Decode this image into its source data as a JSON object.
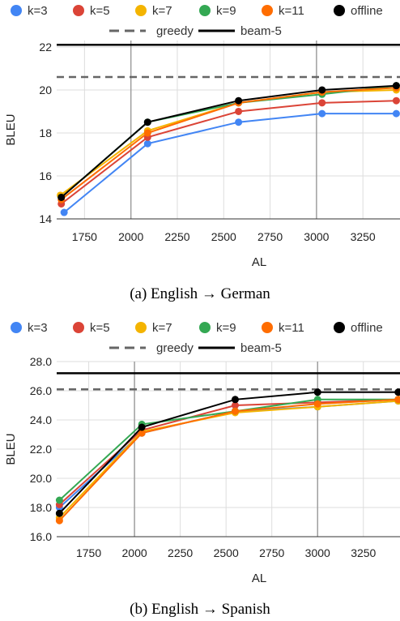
{
  "chart_data": [
    {
      "type": "line",
      "caption": "(a) English → German",
      "xlabel": "AL",
      "ylabel": "BLEU",
      "xlim": [
        1600,
        3450
      ],
      "ylim": [
        14,
        22.3
      ],
      "xticks": [
        "1750",
        "2000",
        "2250",
        "2500",
        "2750",
        "3000",
        "3250"
      ],
      "yticks": [
        "14",
        "16",
        "18",
        "20",
        "22"
      ],
      "series": [
        {
          "name": "k=3",
          "color": "#4285f4",
          "x": [
            1640,
            2090,
            2580,
            3030,
            3430
          ],
          "y": [
            14.3,
            17.5,
            18.5,
            18.9,
            18.9
          ]
        },
        {
          "name": "k=5",
          "color": "#db4437",
          "x": [
            1625,
            2090,
            2580,
            3030,
            3430
          ],
          "y": [
            14.7,
            17.8,
            19.0,
            19.4,
            19.5
          ]
        },
        {
          "name": "k=7",
          "color": "#f4b400",
          "x": [
            1620,
            2090,
            2580,
            3030,
            3430
          ],
          "y": [
            15.1,
            18.1,
            19.4,
            19.9,
            20.0
          ]
        },
        {
          "name": "k=9",
          "color": "#34a853",
          "x": [
            1625,
            2090,
            2580,
            3030,
            3430
          ],
          "y": [
            15.0,
            18.5,
            19.4,
            19.8,
            20.2
          ]
        },
        {
          "name": "k=11",
          "color": "#ff6d00",
          "x": [
            1625,
            2090,
            2580,
            3030,
            3430
          ],
          "y": [
            14.9,
            18.0,
            19.4,
            19.9,
            20.1
          ]
        },
        {
          "name": "offline",
          "color": "#000000",
          "x": [
            1625,
            2090,
            2580,
            3030,
            3430
          ],
          "y": [
            15.0,
            18.5,
            19.5,
            20.0,
            20.2
          ]
        }
      ],
      "reference_lines": [
        {
          "name": "greedy",
          "y": 20.6,
          "style": "dashed",
          "color": "#666666"
        },
        {
          "name": "beam-5",
          "y": 22.1,
          "style": "solid",
          "color": "#000000"
        }
      ]
    },
    {
      "type": "line",
      "caption": "(b) English → Spanish",
      "xlabel": "AL",
      "ylabel": "BLEU",
      "xlim": [
        1575,
        3450
      ],
      "ylim": [
        16,
        28
      ],
      "xticks": [
        "1750",
        "2000",
        "2250",
        "2500",
        "2750",
        "3000",
        "3250"
      ],
      "yticks": [
        "16.0",
        "18.0",
        "20.0",
        "22.0",
        "24.0",
        "26.0",
        "28.0"
      ],
      "series": [
        {
          "name": "k=3",
          "color": "#4285f4",
          "x": [
            1590,
            2040,
            2550,
            3000,
            3440
          ],
          "y": [
            18.0,
            23.1,
            24.6,
            24.9,
            25.3
          ]
        },
        {
          "name": "k=5",
          "color": "#db4437",
          "x": [
            1590,
            2040,
            2550,
            3000,
            3440
          ],
          "y": [
            18.2,
            23.3,
            25.0,
            25.2,
            25.4
          ]
        },
        {
          "name": "k=7",
          "color": "#f4b400",
          "x": [
            1590,
            2040,
            2550,
            3000,
            3440
          ],
          "y": [
            17.3,
            23.2,
            24.5,
            24.9,
            25.3
          ]
        },
        {
          "name": "k=9",
          "color": "#34a853",
          "x": [
            1590,
            2040,
            2550,
            3000,
            3440
          ],
          "y": [
            18.5,
            23.7,
            24.6,
            25.4,
            25.4
          ]
        },
        {
          "name": "k=11",
          "color": "#ff6d00",
          "x": [
            1590,
            2040,
            2550,
            3000,
            3440
          ],
          "y": [
            17.1,
            23.1,
            24.6,
            25.1,
            25.4
          ]
        },
        {
          "name": "offline",
          "color": "#000000",
          "x": [
            1590,
            2040,
            2550,
            3000,
            3440
          ],
          "y": [
            17.6,
            23.5,
            25.4,
            25.9,
            25.9
          ]
        }
      ],
      "reference_lines": [
        {
          "name": "greedy",
          "y": 26.1,
          "style": "dashed",
          "color": "#666666"
        },
        {
          "name": "beam-5",
          "y": 27.2,
          "style": "solid",
          "color": "#000000"
        }
      ]
    }
  ]
}
